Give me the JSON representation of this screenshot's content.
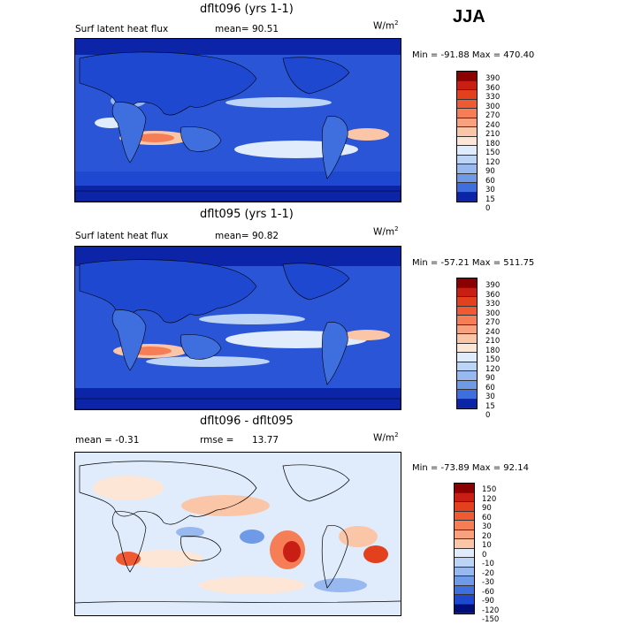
{
  "season": "JJA",
  "panels": [
    {
      "title": "dflt096 (yrs 1-1)",
      "left_label": "Surf latent heat flux",
      "mean_label": "mean=",
      "mean_value": "90.51",
      "units": "W/m",
      "units_sup": "2",
      "minmax": "Min = -91.88 Max = 470.40",
      "colorbar_labels": [
        "390",
        "360",
        "330",
        "300",
        "270",
        "240",
        "210",
        "180",
        "150",
        "120",
        "90",
        "60",
        "30",
        "15",
        "0"
      ]
    },
    {
      "title": "dflt095 (yrs 1-1)",
      "left_label": "Surf latent heat flux",
      "mean_label": "mean=",
      "mean_value": "90.82",
      "units": "W/m",
      "units_sup": "2",
      "minmax": "Min = -57.21 Max = 511.75",
      "colorbar_labels": [
        "390",
        "360",
        "330",
        "300",
        "270",
        "240",
        "210",
        "180",
        "150",
        "120",
        "90",
        "60",
        "30",
        "15",
        "0"
      ]
    },
    {
      "title": "dflt096 - dflt095",
      "left_label": "mean = -0.31",
      "mean_label": "rmse =",
      "mean_value": "13.77",
      "units": "W/m",
      "units_sup": "2",
      "minmax": "Min = -73.89 Max = 92.14",
      "colorbar_labels": [
        "150",
        "120",
        "90",
        "60",
        "30",
        "20",
        "10",
        "0",
        "-10",
        "-20",
        "-30",
        "-60",
        "-90",
        "-120",
        "-150"
      ]
    }
  ],
  "colors": {
    "abs_scale": [
      "#8b0000",
      "#c81e14",
      "#e3401e",
      "#f05a32",
      "#f57e56",
      "#f9a07e",
      "#fbc5a8",
      "#fde6d6",
      "#e0ecfb",
      "#bcd4f6",
      "#97b9f0",
      "#6f9ae8",
      "#3f6fdf",
      "#1e48cf",
      "#0b24a8",
      "#000e7a"
    ],
    "diff_scale": [
      "#8b0000",
      "#c81e14",
      "#e3401e",
      "#f05a32",
      "#f57e56",
      "#f9a07e",
      "#fbc5a8",
      "#fde6d6",
      "#e0ecfb",
      "#bcd4f6",
      "#97b9f0",
      "#6f9ae8",
      "#3f6fdf",
      "#1e48cf",
      "#0b24a8",
      "#000e7a"
    ]
  }
}
